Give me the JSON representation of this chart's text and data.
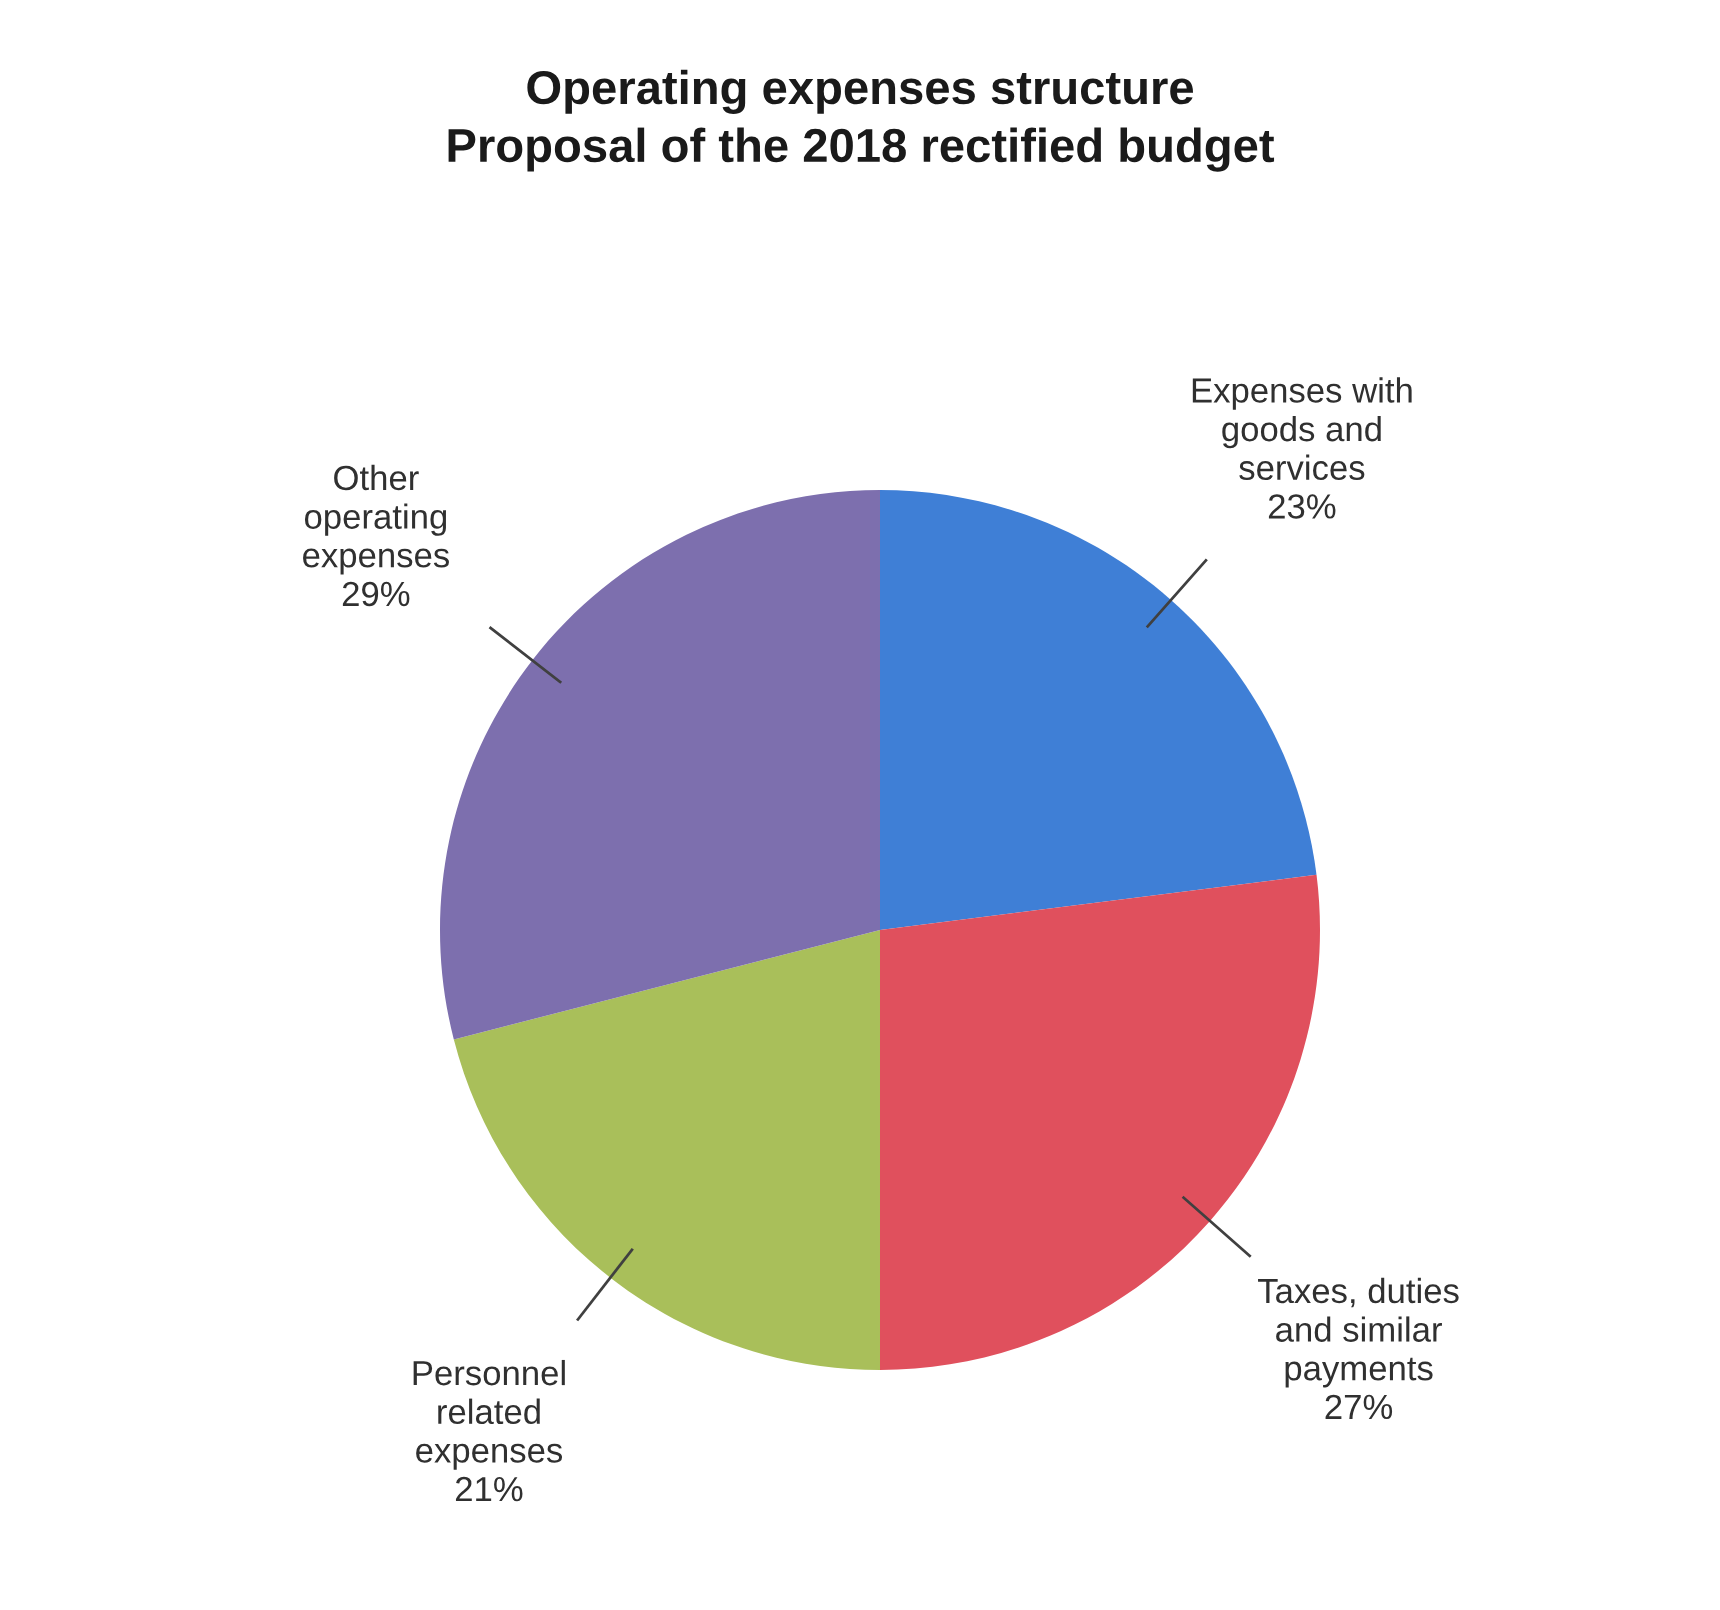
{
  "chart_data": {
    "type": "pie",
    "title": "Operating expenses structure\nProposal of the 2018 rectified budget",
    "categories": [
      "Expenses with\ngoods and\nservices",
      "Taxes, duties\nand similar\npayments",
      "Personnel\nrelated\nexpenses",
      "Other\noperating\nexpenses"
    ],
    "values": [
      23,
      27,
      21,
      29
    ],
    "value_labels": [
      "23%",
      "27%",
      "21%",
      "29%"
    ],
    "colors": [
      "#3f7fd6",
      "#e0505d",
      "#a9bf5a",
      "#7d6fae"
    ],
    "legend": false
  }
}
